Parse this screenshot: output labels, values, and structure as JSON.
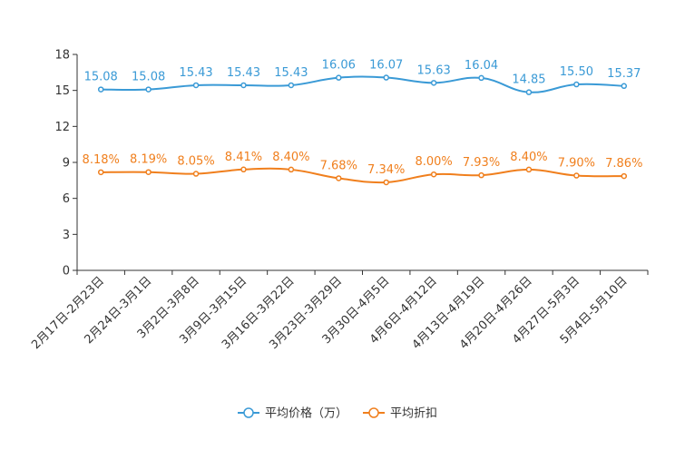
{
  "chart_data": {
    "type": "line",
    "title": "",
    "xlabel": "",
    "ylabel": "",
    "ylim": [
      0,
      18
    ],
    "yticks": [
      0,
      3,
      6,
      9,
      12,
      15,
      18
    ],
    "grid": false,
    "legend_position": "bottom-center",
    "categories": [
      "2月17日-2月23日",
      "2月24日-3月1日",
      "3月2日-3月8日",
      "3月9日-3月15日",
      "3月16日-3月22日",
      "3月23日-3月29日",
      "3月30日-4月5日",
      "4月6日-4月12日",
      "4月13日-4月19日",
      "4月20日-4月26日",
      "4月27日-5月3日",
      "5月4日-5月10日"
    ],
    "series": [
      {
        "name": "平均价格（万）",
        "color": "#3a9ad6",
        "values": [
          15.08,
          15.08,
          15.43,
          15.43,
          15.43,
          16.06,
          16.07,
          15.63,
          16.04,
          14.85,
          15.5,
          15.37
        ],
        "labels": [
          "15.08",
          "15.08",
          "15.43",
          "15.43",
          "15.43",
          "16.06",
          "16.07",
          "15.63",
          "16.04",
          "14.85",
          "15.50",
          "15.37"
        ]
      },
      {
        "name": "平均折扣",
        "color": "#f07f1d",
        "values": [
          8.18,
          8.19,
          8.05,
          8.41,
          8.4,
          7.68,
          7.34,
          8.0,
          7.93,
          8.4,
          7.9,
          7.86
        ],
        "labels": [
          "8.18%",
          "8.19%",
          "8.05%",
          "8.41%",
          "8.40%",
          "7.68%",
          "7.34%",
          "8.00%",
          "7.93%",
          "8.40%",
          "7.90%",
          "7.86%"
        ]
      }
    ]
  }
}
